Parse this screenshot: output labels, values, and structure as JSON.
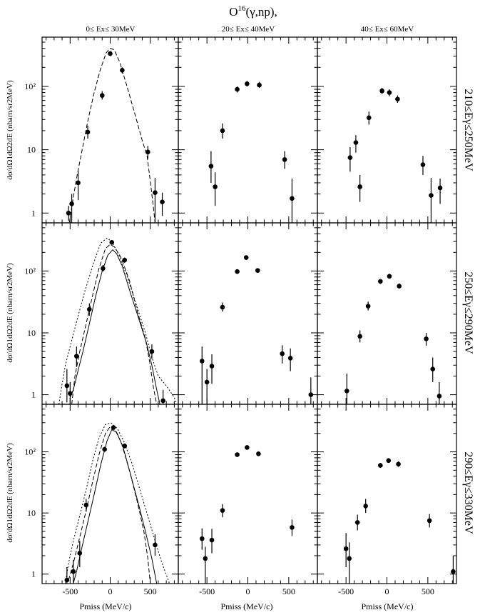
{
  "title": "O16(γ,np),",
  "title_parts": {
    "element": "O",
    "mass": "16",
    "reaction": "(γ,np),"
  },
  "column_headers": [
    "0≤ Ex≤ 30MeV",
    "20≤ Ex≤ 40MeV",
    "40≤ Ex≤ 60MeV"
  ],
  "row_labels": [
    "210≤Eγ≤250MeV",
    "250≤Eγ≤290MeV",
    "290≤Eγ≤330MeV"
  ],
  "ylabel": "dσ/dΩ1dΩ2dE (nbarn/sr2MeV)",
  "xlabel": "Pmiss (MeV/c)",
  "colors": {
    "ink": "#000000",
    "background": "#ffffff"
  },
  "chart_data": {
    "type": "scatter",
    "xlim": [
      -850,
      850
    ],
    "ylim": [
      0.7,
      600
    ],
    "yscale": "log",
    "xticks": [
      -500,
      0,
      500
    ],
    "xtick_labels": [
      "-500",
      "0",
      "500"
    ],
    "yticks": [
      1,
      10,
      100
    ],
    "ytick_labels": [
      "1",
      "10",
      "10²"
    ],
    "grid": false,
    "panels": [
      {
        "row": 0,
        "col": 0,
        "points": [
          [
            -520,
            1.0,
            0.75,
            1.3
          ],
          [
            -480,
            1.4,
            0.7,
            2.0
          ],
          [
            -400,
            3.0,
            1.6,
            4.6
          ],
          [
            -280,
            19,
            15,
            24
          ],
          [
            -100,
            72,
            62,
            84
          ],
          [
            0,
            330,
            300,
            360
          ],
          [
            150,
            180,
            160,
            200
          ],
          [
            470,
            9.2,
            7.2,
            11.5
          ],
          [
            560,
            2.1,
            0.7,
            3.6
          ],
          [
            650,
            1.5,
            0.9,
            2.1
          ]
        ],
        "curves": [
          {
            "style": "dashed",
            "points": [
              [
                -510,
                0.7
              ],
              [
                -470,
                1.5
              ],
              [
                -420,
                3.5
              ],
              [
                -350,
                10
              ],
              [
                -280,
                28
              ],
              [
                -200,
                80
              ],
              [
                -120,
                190
              ],
              [
                -50,
                340
              ],
              [
                0,
                400
              ],
              [
                50,
                380
              ],
              [
                120,
                240
              ],
              [
                200,
                110
              ],
              [
                300,
                40
              ],
              [
                400,
                14
              ],
              [
                460,
                8
              ],
              [
                500,
                3.2
              ],
              [
                540,
                1.2
              ],
              [
                560,
                0.7
              ]
            ]
          }
        ]
      },
      {
        "row": 0,
        "col": 1,
        "points": [
          [
            -450,
            5.5,
            3.0,
            9.5
          ],
          [
            -400,
            2.6,
            1.3,
            4.4
          ],
          [
            -310,
            20,
            15,
            26
          ],
          [
            -130,
            90,
            80,
            100
          ],
          [
            -10,
            110,
            100,
            122
          ],
          [
            140,
            105,
            95,
            118
          ],
          [
            450,
            7.0,
            5.0,
            9.5
          ],
          [
            540,
            1.7,
            0.7,
            3.5
          ]
        ],
        "curves": []
      },
      {
        "row": 0,
        "col": 2,
        "points": [
          [
            -450,
            7.5,
            4.5,
            11
          ],
          [
            -380,
            13,
            9,
            17
          ],
          [
            -330,
            2.6,
            1.5,
            4.0
          ],
          [
            -220,
            32,
            25,
            40
          ],
          [
            -60,
            85,
            76,
            95
          ],
          [
            30,
            80,
            70,
            90
          ],
          [
            130,
            63,
            55,
            72
          ],
          [
            440,
            5.8,
            4.0,
            8.0
          ],
          [
            540,
            1.9,
            0.7,
            3.6
          ],
          [
            650,
            2.5,
            1.4,
            3.5
          ]
        ],
        "curves": []
      },
      {
        "row": 1,
        "col": 0,
        "points": [
          [
            -540,
            1.4,
            0.75,
            2.6
          ],
          [
            -500,
            1.05,
            0.7,
            1.6
          ],
          [
            -420,
            4.2,
            2.8,
            6.0
          ],
          [
            -260,
            24,
            19,
            30
          ],
          [
            -90,
            110,
            98,
            125
          ],
          [
            20,
            290,
            270,
            310
          ],
          [
            180,
            150,
            136,
            165
          ],
          [
            520,
            5.0,
            3.8,
            6.5
          ],
          [
            660,
            0.8,
            0.7,
            1.2
          ]
        ],
        "curves": [
          {
            "style": "solid",
            "points": [
              [
                -500,
                0.9
              ],
              [
                -460,
                1.2
              ],
              [
                -400,
                2.5
              ],
              [
                -340,
                5
              ],
              [
                -260,
                14
              ],
              [
                -180,
                40
              ],
              [
                -100,
                100
              ],
              [
                -30,
                180
              ],
              [
                30,
                220
              ],
              [
                80,
                190
              ],
              [
                150,
                120
              ],
              [
                250,
                45
              ],
              [
                350,
                18
              ],
              [
                450,
                7
              ],
              [
                520,
                3
              ],
              [
                580,
                1.2
              ],
              [
                620,
                0.7
              ]
            ]
          },
          {
            "style": "dashed",
            "points": [
              [
                -480,
                0.7
              ],
              [
                -440,
                2.0
              ],
              [
                -380,
                5
              ],
              [
                -300,
                14
              ],
              [
                -220,
                40
              ],
              [
                -140,
                110
              ],
              [
                -60,
                230
              ],
              [
                0,
                270
              ],
              [
                60,
                240
              ],
              [
                140,
                160
              ],
              [
                240,
                70
              ],
              [
                340,
                22
              ],
              [
                440,
                8
              ],
              [
                490,
                3.5
              ],
              [
                540,
                1.3
              ],
              [
                580,
                0.7
              ]
            ]
          },
          {
            "style": "dotted",
            "points": [
              [
                -640,
                0.7
              ],
              [
                -600,
                1.5
              ],
              [
                -560,
                3.0
              ],
              [
                -500,
                6
              ],
              [
                -420,
                15
              ],
              [
                -320,
                45
              ],
              [
                -220,
                120
              ],
              [
                -120,
                280
              ],
              [
                -40,
                340
              ],
              [
                20,
                300
              ],
              [
                100,
                190
              ],
              [
                200,
                90
              ],
              [
                320,
                30
              ],
              [
                440,
                10
              ],
              [
                520,
                4
              ],
              [
                600,
                2
              ],
              [
                700,
                1.4
              ],
              [
                800,
                0.9
              ],
              [
                830,
                0.7
              ]
            ]
          }
        ]
      },
      {
        "row": 1,
        "col": 1,
        "points": [
          [
            -560,
            3.5,
            0.7,
            6.0
          ],
          [
            -500,
            1.6,
            0.7,
            2.6
          ],
          [
            -440,
            2.9,
            1.5,
            4.5
          ],
          [
            -310,
            26,
            22,
            31
          ],
          [
            -130,
            98,
            90,
            107
          ],
          [
            -20,
            165,
            152,
            178
          ],
          [
            120,
            102,
            94,
            111
          ],
          [
            420,
            4.6,
            3.2,
            6.3
          ],
          [
            520,
            3.9,
            2.4,
            5.6
          ],
          [
            770,
            1.0,
            0.7,
            1.9
          ]
        ],
        "curves": []
      },
      {
        "row": 1,
        "col": 2,
        "points": [
          [
            -490,
            1.15,
            0.7,
            2.2
          ],
          [
            -330,
            8.8,
            7.0,
            11
          ],
          [
            -230,
            27,
            23,
            32
          ],
          [
            -80,
            68,
            62,
            74
          ],
          [
            30,
            82,
            75,
            90
          ],
          [
            150,
            57,
            52,
            63
          ],
          [
            480,
            8.0,
            6.2,
            10
          ],
          [
            560,
            2.6,
            1.6,
            4.0
          ],
          [
            640,
            0.95,
            0.7,
            1.6
          ]
        ],
        "curves": []
      },
      {
        "row": 2,
        "col": 0,
        "points": [
          [
            -540,
            0.8,
            0.7,
            1.3
          ],
          [
            -460,
            1.1,
            0.7,
            1.7
          ],
          [
            -380,
            2.2,
            1.3,
            3.5
          ],
          [
            -300,
            13.5,
            10.5,
            17
          ],
          [
            -70,
            110,
            100,
            121
          ],
          [
            40,
            250,
            232,
            270
          ],
          [
            180,
            125,
            114,
            137
          ],
          [
            560,
            3.0,
            2.0,
            4.5
          ]
        ],
        "curves": [
          {
            "style": "solid",
            "points": [
              [
                -460,
                0.7
              ],
              [
                -420,
                1.1
              ],
              [
                -360,
                2.5
              ],
              [
                -280,
                7
              ],
              [
                -200,
                20
              ],
              [
                -120,
                60
              ],
              [
                -40,
                150
              ],
              [
                20,
                230
              ],
              [
                80,
                210
              ],
              [
                160,
                120
              ],
              [
                260,
                40
              ],
              [
                360,
                13
              ],
              [
                440,
                5
              ],
              [
                520,
                1.8
              ],
              [
                580,
                0.7
              ]
            ]
          },
          {
            "style": "dashed",
            "points": [
              [
                -520,
                0.8
              ],
              [
                -460,
                1.5
              ],
              [
                -380,
                4
              ],
              [
                -300,
                11
              ],
              [
                -220,
                32
              ],
              [
                -140,
                90
              ],
              [
                -60,
                200
              ],
              [
                0,
                260
              ],
              [
                60,
                230
              ],
              [
                140,
                140
              ],
              [
                240,
                50
              ],
              [
                340,
                15
              ],
              [
                420,
                5
              ],
              [
                470,
                1.8
              ],
              [
                500,
                0.7
              ]
            ]
          },
          {
            "style": "dotted",
            "points": [
              [
                -560,
                0.7
              ],
              [
                -520,
                1.5
              ],
              [
                -460,
                3.5
              ],
              [
                -380,
                9
              ],
              [
                -300,
                24
              ],
              [
                -220,
                70
              ],
              [
                -140,
                170
              ],
              [
                -60,
                280
              ],
              [
                10,
                300
              ],
              [
                90,
                240
              ],
              [
                180,
                140
              ],
              [
                280,
                60
              ],
              [
                380,
                22
              ],
              [
                480,
                8
              ],
              [
                560,
                3.5
              ],
              [
                640,
                1.6
              ],
              [
                710,
                0.9
              ],
              [
                740,
                0.7
              ]
            ]
          }
        ]
      },
      {
        "row": 2,
        "col": 1,
        "points": [
          [
            -560,
            3.8,
            2.5,
            5.6
          ],
          [
            -520,
            1.8,
            0.7,
            2.8
          ],
          [
            -440,
            3.6,
            2.2,
            5.5
          ],
          [
            -310,
            11,
            8.5,
            14
          ],
          [
            -130,
            90,
            83,
            97
          ],
          [
            -10,
            118,
            109,
            128
          ],
          [
            130,
            93,
            85,
            102
          ],
          [
            540,
            5.8,
            4.2,
            7.8
          ]
        ],
        "curves": []
      },
      {
        "row": 2,
        "col": 2,
        "points": [
          [
            -500,
            2.6,
            1.3,
            4.7
          ],
          [
            -460,
            1.8,
            0.7,
            3.3
          ],
          [
            -360,
            7.0,
            5.2,
            9.4
          ],
          [
            -260,
            13,
            10,
            17
          ],
          [
            -80,
            60,
            55,
            66
          ],
          [
            20,
            72,
            66,
            79
          ],
          [
            140,
            63,
            57,
            70
          ],
          [
            520,
            7.5,
            5.8,
            9.6
          ],
          [
            810,
            1.1,
            0.7,
            2.0
          ]
        ],
        "curves": []
      }
    ]
  }
}
